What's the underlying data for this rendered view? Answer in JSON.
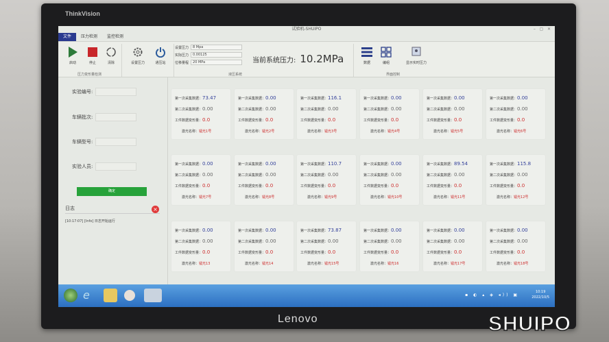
{
  "monitor": {
    "brand_top": "ThinkVision",
    "brand_bottom": "Lenovo",
    "watermark": "SHUIPO"
  },
  "window": {
    "title": "试验机-SHUIPO",
    "controls": [
      "–",
      "▢",
      "✕"
    ]
  },
  "tabs": [
    {
      "label": "文件",
      "active": true
    },
    {
      "label": "压力检测"
    },
    {
      "label": "监控检测"
    }
  ],
  "ribbon": {
    "buttons": [
      {
        "label": "启动",
        "icon": "play-icon"
      },
      {
        "label": "停止",
        "icon": "stop-icon"
      },
      {
        "label": "清除",
        "icon": "refresh-icon"
      },
      {
        "label": "设置压力",
        "icon": "gear-icon"
      },
      {
        "label": "通压站",
        "icon": "power-icon"
      }
    ],
    "group1": "压力变形量检测",
    "fields": [
      {
        "label": "设置压力",
        "value": "8 Mpa"
      },
      {
        "label": "实际压力",
        "value": "0.00125"
      },
      {
        "label": "位移量程",
        "value": "20 MPa"
      }
    ],
    "group2": "液压系统",
    "pressure_label": "当前系统压力:",
    "pressure_value": "10.2MPa",
    "view_buttons": [
      {
        "label": "数据",
        "icon": "list-icon"
      },
      {
        "label": "编组",
        "icon": "grid-icon"
      },
      {
        "label": "显示实时压力",
        "icon": "monitor-icon"
      }
    ],
    "group3": "界面控制"
  },
  "left": {
    "fields": [
      "实验编号:",
      "车辆批次:",
      "车辆型号:",
      "实验人员:"
    ],
    "ok": "确定",
    "log_title": "日志",
    "log_line": "[10:17:07] [Info] 日志开始运行"
  },
  "card_labels": {
    "first": "第一次采集数据：",
    "second": "第二次采集数据：",
    "deform": "工件数据变形量：",
    "name": "激光名称："
  },
  "cards": [
    {
      "v1": "73.47",
      "v2": "0.00",
      "v3": "0.0",
      "name": "镭光1号"
    },
    {
      "v1": "0.00",
      "v2": "0.00",
      "v3": "0.0",
      "name": "镭光2号"
    },
    {
      "v1": "116.1",
      "v2": "0.00",
      "v3": "0.0",
      "name": "镭光3号"
    },
    {
      "v1": "0.00",
      "v2": "0.00",
      "v3": "0.0",
      "name": "镭光4号"
    },
    {
      "v1": "0.00",
      "v2": "0.00",
      "v3": "0.0",
      "name": "镭光5号"
    },
    {
      "v1": "0.00",
      "v2": "0.00",
      "v3": "0.0",
      "name": "镭光6号"
    },
    {
      "v1": "0.00",
      "v2": "0.00",
      "v3": "0.0",
      "name": "镭光7号"
    },
    {
      "v1": "0.00",
      "v2": "0.00",
      "v3": "0.0",
      "name": "镭光8号"
    },
    {
      "v1": "110.7",
      "v2": "0.00",
      "v3": "0.0",
      "name": "镭光9号"
    },
    {
      "v1": "0.00",
      "v2": "0.00",
      "v3": "0.0",
      "name": "镭光10号"
    },
    {
      "v1": "89.54",
      "v2": "0.00",
      "v3": "0.0",
      "name": "镭光11号"
    },
    {
      "v1": "115.8",
      "v2": "0.00",
      "v3": "0.0",
      "name": "镭光12号"
    },
    {
      "v1": "0.00",
      "v2": "0.00",
      "v3": "0.0",
      "name": "镭光13"
    },
    {
      "v1": "0.00",
      "v2": "0.00",
      "v3": "0.0",
      "name": "镭光14"
    },
    {
      "v1": "73.87",
      "v2": "0.00",
      "v3": "0.0",
      "name": "镭光15号"
    },
    {
      "v1": "0.00",
      "v2": "0.00",
      "v3": "0.0",
      "name": "镭光16"
    },
    {
      "v1": "0.00",
      "v2": "0.00",
      "v3": "0.0",
      "name": "镭光17号"
    },
    {
      "v1": "0.00",
      "v2": "0.00",
      "v3": "0.0",
      "name": "镭光18号"
    }
  ],
  "taskbar": {
    "time": "10:19",
    "date": "2022/10/5"
  }
}
